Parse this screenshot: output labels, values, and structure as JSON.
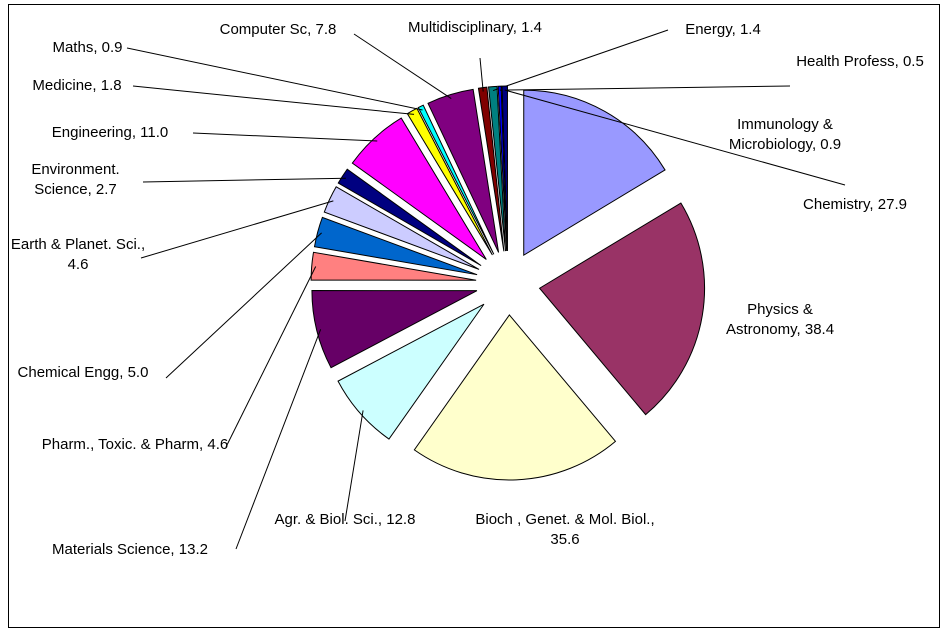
{
  "chart_data": {
    "type": "pie",
    "categories": [
      "Chemistry",
      "Physics & Astronomy",
      "Bioch , Genet. & Mol. Biol.",
      "Agr. & Biol. Sci.",
      "Materials Science",
      "Pharm., Toxic. & Pharm",
      "Chemical Engg",
      "Earth & Planet. Sci.",
      "Environment. Science",
      "Engineering",
      "Medicine",
      "Maths",
      "Computer Sc",
      "Multidisciplinary",
      "Energy",
      "Health Profess",
      "Immunology & Microbiology"
    ],
    "values": [
      27.9,
      38.4,
      35.6,
      12.8,
      13.2,
      4.6,
      5.0,
      4.6,
      2.7,
      11.0,
      1.8,
      0.9,
      7.8,
      1.4,
      1.4,
      0.5,
      0.9
    ],
    "value_labels": [
      "27.9",
      "38.4",
      "35.6",
      "12.8",
      "13.2",
      "4.6",
      "5.0",
      "4.6",
      "2.7",
      "11.0",
      "1.8",
      "0.9",
      "7.8",
      "1.4",
      "1.4",
      "0.5",
      "0.9"
    ],
    "colors": [
      "#9999FF",
      "#993366",
      "#FFFFCC",
      "#CCFFFF",
      "#660066",
      "#FF8080",
      "#0066CC",
      "#CCCCFF",
      "#000080",
      "#FF00FF",
      "#FFFF00",
      "#00FFFF",
      "#800080",
      "#800000",
      "#008080",
      "#0000FF",
      "#000080"
    ]
  }
}
